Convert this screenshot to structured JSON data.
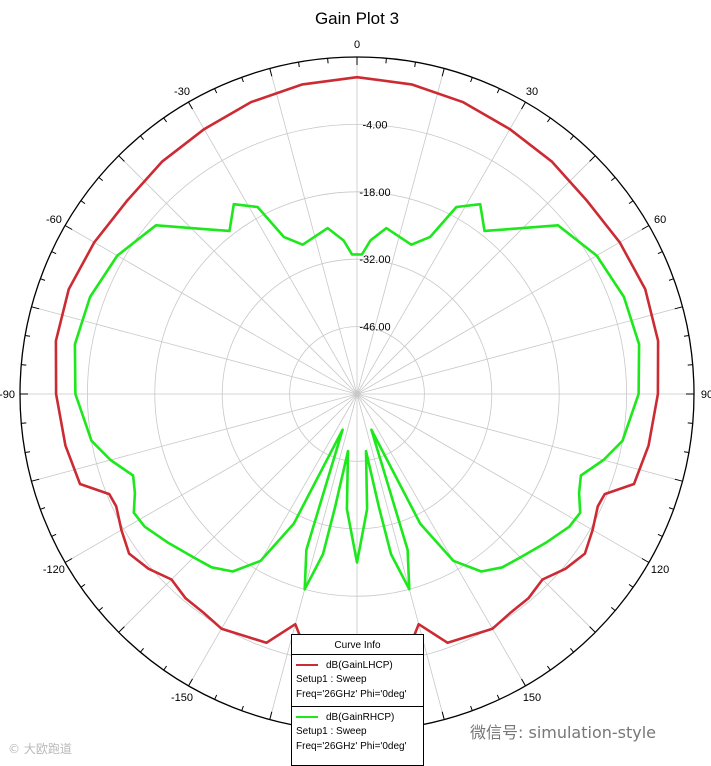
{
  "chart_data": {
    "type": "polar-line",
    "title": "Gain Plot 3",
    "angle_ticks": [
      {
        "deg": 0,
        "label": "0"
      },
      {
        "deg": 30,
        "label": "30"
      },
      {
        "deg": 60,
        "label": "60"
      },
      {
        "deg": 90,
        "label": "90"
      },
      {
        "deg": 120,
        "label": "120"
      },
      {
        "deg": 150,
        "label": "150"
      },
      {
        "deg": -30,
        "label": "-30"
      },
      {
        "deg": -60,
        "label": "-60"
      },
      {
        "deg": -90,
        "label": "-90"
      },
      {
        "deg": -120,
        "label": "-120"
      },
      {
        "deg": -150,
        "label": "-150"
      }
    ],
    "radial_ticks": [
      {
        "value": -4,
        "label": "-4.00"
      },
      {
        "value": -18,
        "label": "-18.00"
      },
      {
        "value": -32,
        "label": "-32.00"
      },
      {
        "value": -46,
        "label": "-46.00"
      }
    ],
    "r_range": [
      -60,
      10
    ],
    "grid": true,
    "series": [
      {
        "name": "dB(GainLHCP)",
        "color": "#cc2b33",
        "points": [
          [
            -180,
            -8.5
          ],
          [
            -170,
            -3.7
          ],
          [
            -165,
            -10.5
          ],
          [
            -160,
            -5
          ],
          [
            -150,
            -3.7
          ],
          [
            -145,
            -4.5
          ],
          [
            -140,
            -4.6
          ],
          [
            -135,
            -5.5
          ],
          [
            -130,
            -3.5
          ],
          [
            -125,
            -2.2
          ],
          [
            -120,
            -3.5
          ],
          [
            -115,
            -4.8
          ],
          [
            -112,
            -4.5
          ],
          [
            -108,
            0.5
          ],
          [
            -100,
            1.5
          ],
          [
            -90,
            2.5
          ],
          [
            -80,
            3.5
          ],
          [
            -70,
            3.7
          ],
          [
            -60,
            3
          ],
          [
            -50,
            2.4
          ],
          [
            -40,
            3
          ],
          [
            -30,
            3.5
          ],
          [
            -20,
            4.5
          ],
          [
            -10,
            5.3
          ],
          [
            0,
            5.8
          ],
          [
            10,
            5.3
          ],
          [
            20,
            4.5
          ],
          [
            30,
            3.5
          ],
          [
            40,
            3
          ],
          [
            50,
            2.4
          ],
          [
            60,
            3
          ],
          [
            70,
            3.7
          ],
          [
            80,
            3.5
          ],
          [
            90,
            2.5
          ],
          [
            100,
            1.5
          ],
          [
            108,
            0.5
          ],
          [
            112,
            -4.5
          ],
          [
            115,
            -4.8
          ],
          [
            120,
            -3.5
          ],
          [
            125,
            -2.2
          ],
          [
            130,
            -3.5
          ],
          [
            135,
            -5.5
          ],
          [
            140,
            -4.6
          ],
          [
            145,
            -4.5
          ],
          [
            150,
            -3.7
          ],
          [
            160,
            -5
          ],
          [
            165,
            -10.5
          ],
          [
            170,
            -3.7
          ],
          [
            180,
            -8.5
          ]
        ]
      },
      {
        "name": "dB(GainRHCP)",
        "color": "#1ce81c",
        "points": [
          [
            -180,
            -25
          ],
          [
            -175,
            -36
          ],
          [
            -171,
            -48
          ],
          [
            -169,
            -36
          ],
          [
            -168,
            -26
          ],
          [
            -165,
            -18
          ],
          [
            -162,
            -26
          ],
          [
            -158,
            -52
          ],
          [
            -154,
            -30
          ],
          [
            -150,
            -20
          ],
          [
            -145,
            -15
          ],
          [
            -140,
            -13
          ],
          [
            -135,
            -12
          ],
          [
            -128,
            -10
          ],
          [
            -122,
            -8
          ],
          [
            -118,
            -7.5
          ],
          [
            -114,
            -9.5
          ],
          [
            -110,
            -10.5
          ],
          [
            -105,
            -7
          ],
          [
            -100,
            -4
          ],
          [
            -90,
            -1.5
          ],
          [
            -80,
            -0.5
          ],
          [
            -70,
            -1
          ],
          [
            -60,
            -2.5
          ],
          [
            -50,
            -5.5
          ],
          [
            -42,
            -14
          ],
          [
            -38,
            -17
          ],
          [
            -33,
            -13
          ],
          [
            -28,
            -16
          ],
          [
            -25,
            -24
          ],
          [
            -20,
            -27
          ],
          [
            -10,
            -25
          ],
          [
            -5,
            -28
          ],
          [
            -2,
            -31
          ],
          [
            0,
            -31
          ],
          [
            2,
            -31
          ],
          [
            5,
            -28
          ],
          [
            10,
            -25
          ],
          [
            20,
            -27
          ],
          [
            25,
            -24
          ],
          [
            28,
            -16
          ],
          [
            33,
            -13
          ],
          [
            38,
            -17
          ],
          [
            42,
            -14
          ],
          [
            50,
            -5.5
          ],
          [
            60,
            -2.5
          ],
          [
            70,
            -1
          ],
          [
            80,
            -0.5
          ],
          [
            90,
            -1.5
          ],
          [
            100,
            -4
          ],
          [
            105,
            -7
          ],
          [
            110,
            -10.5
          ],
          [
            114,
            -9.5
          ],
          [
            118,
            -7.5
          ],
          [
            122,
            -8
          ],
          [
            128,
            -10
          ],
          [
            135,
            -12
          ],
          [
            140,
            -13
          ],
          [
            145,
            -15
          ],
          [
            150,
            -20
          ],
          [
            154,
            -30
          ],
          [
            158,
            -52
          ],
          [
            162,
            -26
          ],
          [
            165,
            -18
          ],
          [
            168,
            -26
          ],
          [
            169,
            -36
          ],
          [
            171,
            -48
          ],
          [
            175,
            -36
          ],
          [
            180,
            -25
          ]
        ]
      }
    ]
  },
  "legend": {
    "header": "Curve Info",
    "entries": [
      {
        "name": "dB(GainLHCP)",
        "line1": "Setup1 : Sweep",
        "line2": "Freq='26GHz' Phi='0deg'",
        "color": "#cc2b33"
      },
      {
        "name": "dB(GainRHCP)",
        "line1": "Setup1 : Sweep",
        "line2": "Freq='26GHz' Phi='0deg'",
        "color": "#1ce81c"
      }
    ]
  },
  "watermarks": {
    "right": "微信号: simulation-style",
    "left": "© 大欧跑道"
  }
}
